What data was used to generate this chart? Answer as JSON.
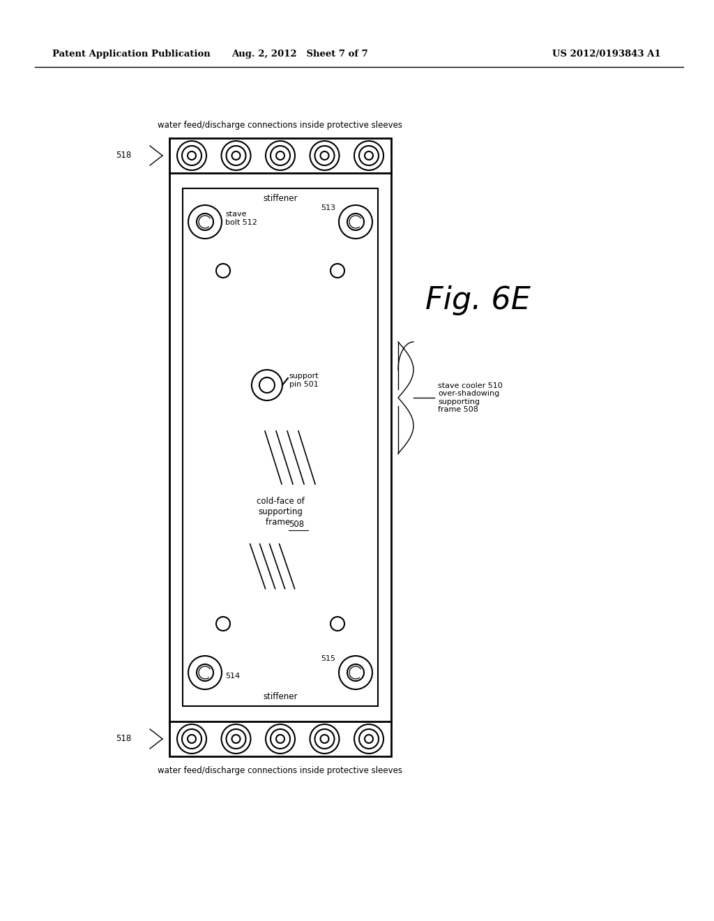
{
  "bg_color": "#ffffff",
  "line_color": "#000000",
  "header_left": "Patent Application Publication",
  "header_mid": "Aug. 2, 2012   Sheet 7 of 7",
  "header_right": "US 2012/0193843 A1",
  "fig_label": "Fig. 6E",
  "label_top": "water feed/discharge connections inside protective sleeves",
  "label_bottom": "water feed/discharge connections inside protective sleeves",
  "label_stiffener_top": "stiffener",
  "label_stiffener_bot": "stiffener",
  "label_stave_bolt": "stave\nbolt 512",
  "label_513": "513",
  "label_support_pin": "support\npin 501",
  "label_cold_face": "cold-face of\nsupporting\nframe  508",
  "label_514": "514",
  "label_515": "515",
  "label_stave_cooler": "stave cooler 510\nover-shadowing\nsupporting\nframe 508"
}
